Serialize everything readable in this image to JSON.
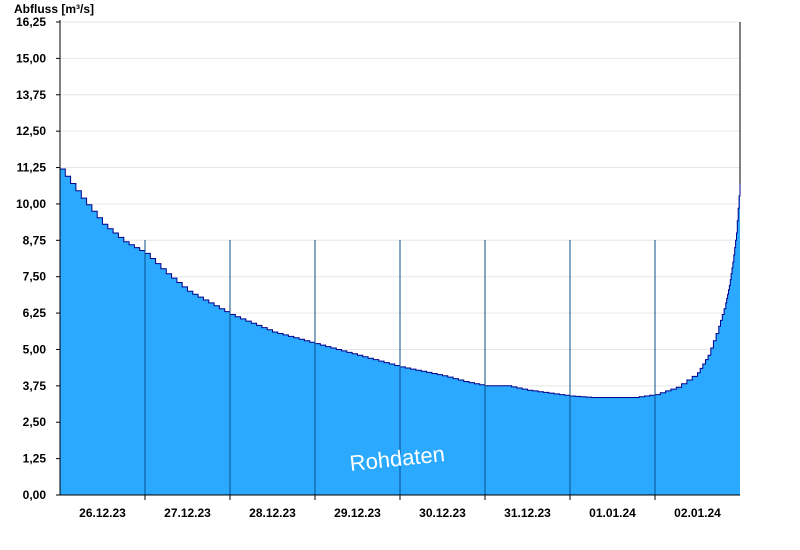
{
  "chart_data": {
    "type": "area",
    "title": "",
    "ylabel": "Abfluss [m³/s]",
    "xlabel": "",
    "ylim": [
      0,
      16.25
    ],
    "yticks": [
      "0,00",
      "1,25",
      "2,50",
      "3,75",
      "5,00",
      "6,25",
      "7,50",
      "8,75",
      "10,00",
      "11,25",
      "12,50",
      "13,75",
      "15,00",
      "16,25"
    ],
    "x_start": "25.12.23 12:00",
    "x_end": "02.01.24 12:00",
    "xticks": [
      "26.12.23",
      "27.12.23",
      "28.12.23",
      "29.12.23",
      "30.12.23",
      "31.12.23",
      "01.01.24",
      "02.01.24"
    ],
    "grid": true,
    "watermark": "Rohdaten",
    "fill_color": "#2aa9ff",
    "line_color": "#00008b",
    "series": [
      {
        "x": [
          "25.12.23 12:00",
          "25.12.23 18:00",
          "26.12.23 00:00",
          "26.12.23 06:00",
          "26.12.23 12:00",
          "26.12.23 18:00",
          "27.12.23 00:00",
          "27.12.23 06:00",
          "27.12.23 12:00",
          "27.12.23 18:00",
          "28.12.23 00:00",
          "28.12.23 06:00",
          "28.12.23 12:00",
          "28.12.23 18:00",
          "29.12.23 00:00",
          "29.12.23 06:00",
          "29.12.23 12:00",
          "29.12.23 18:00",
          "30.12.23 00:00",
          "30.12.23 06:00",
          "30.12.23 12:00",
          "30.12.23 18:00",
          "31.12.23 00:00",
          "31.12.23 06:00",
          "31.12.23 12:00",
          "31.12.23 18:00",
          "01.01.24 00:00",
          "01.01.24 06:00",
          "01.01.24 12:00",
          "01.01.24 18:00",
          "02.01.24 00:00",
          "02.01.24 03:00",
          "02.01.24 06:00",
          "02.01.24 08:00",
          "02.01.24 09:00",
          "02.01.24 10:00",
          "02.01.24 11:00",
          "02.01.24 12:00"
        ],
        "y": [
          11.2,
          10.2,
          9.3,
          8.7,
          8.3,
          7.6,
          7.0,
          6.6,
          6.2,
          5.9,
          5.6,
          5.4,
          5.2,
          5.0,
          4.8,
          4.6,
          4.4,
          4.25,
          4.1,
          3.9,
          3.75,
          3.75,
          3.6,
          3.5,
          3.4,
          3.35,
          3.35,
          3.35,
          3.45,
          3.7,
          4.2,
          4.8,
          5.8,
          6.6,
          7.2,
          8.0,
          9.0,
          10.7
        ]
      }
    ]
  }
}
